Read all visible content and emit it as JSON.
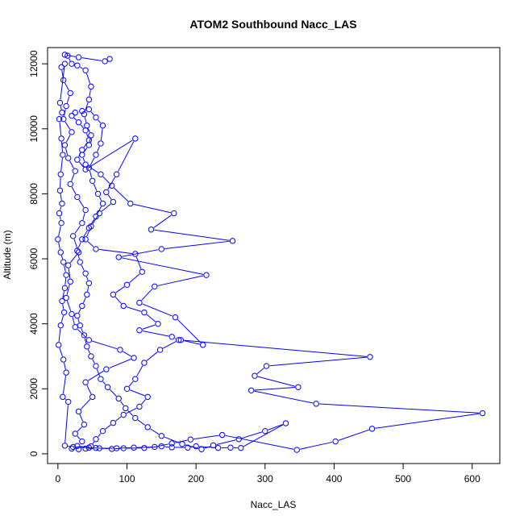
{
  "chart_data": {
    "type": "line",
    "title": "ATOM2 Southbound Nacc_LAS",
    "xlabel": "Nacc_LAS",
    "ylabel": "Altitude (m)",
    "xlim": [
      -15,
      640
    ],
    "ylim": [
      -300,
      12500
    ],
    "xticks": [
      0,
      100,
      200,
      300,
      400,
      500,
      600
    ],
    "yticks": [
      0,
      2000,
      4000,
      6000,
      8000,
      10000,
      12000
    ],
    "grid": false,
    "legend": "none",
    "marker": "open-circle",
    "color": "#0000FF",
    "series": [
      {
        "values": [
          [
            75,
            12150
          ],
          [
            68,
            12080
          ],
          [
            30,
            12200
          ],
          [
            10,
            12280
          ],
          [
            14,
            12250
          ],
          [
            20,
            12000
          ],
          [
            28,
            11950
          ],
          [
            40,
            11800
          ],
          [
            48,
            11300
          ],
          [
            45,
            10900
          ],
          [
            38,
            10450
          ],
          [
            42,
            10100
          ],
          [
            48,
            9800
          ],
          [
            45,
            9500
          ],
          [
            35,
            9200
          ],
          [
            40,
            8900
          ],
          [
            62,
            8600
          ],
          [
            78,
            8250
          ],
          [
            105,
            7700
          ],
          [
            168,
            7400
          ],
          [
            135,
            6900
          ],
          [
            253,
            6550
          ],
          [
            150,
            6300
          ],
          [
            88,
            6050
          ],
          [
            215,
            5500
          ],
          [
            140,
            5150
          ],
          [
            118,
            4650
          ],
          [
            170,
            4200
          ],
          [
            210,
            3350
          ],
          [
            178,
            3500
          ],
          [
            452,
            2980
          ],
          [
            302,
            2700
          ],
          [
            285,
            2400
          ],
          [
            348,
            2050
          ],
          [
            280,
            1950
          ],
          [
            374,
            1540
          ],
          [
            615,
            1250
          ],
          [
            455,
            770
          ],
          [
            402,
            380
          ],
          [
            346,
            120
          ],
          [
            238,
            580
          ],
          [
            192,
            440
          ],
          [
            165,
            320
          ],
          [
            140,
            210
          ],
          [
            110,
            190
          ],
          [
            85,
            170
          ],
          [
            60,
            170
          ],
          [
            45,
            190
          ],
          [
            28,
            240
          ],
          [
            35,
            380
          ],
          [
            25,
            620
          ],
          [
            38,
            900
          ],
          [
            30,
            1300
          ],
          [
            50,
            1750
          ],
          [
            40,
            2200
          ],
          [
            70,
            2600
          ],
          [
            110,
            2950
          ],
          [
            90,
            3200
          ],
          [
            45,
            3500
          ],
          [
            25,
            3900
          ],
          [
            20,
            4300
          ],
          [
            12,
            4800
          ],
          [
            18,
            5300
          ],
          [
            15,
            5800
          ],
          [
            30,
            6200
          ],
          [
            22,
            6700
          ],
          [
            35,
            7100
          ],
          [
            40,
            7500
          ],
          [
            28,
            7900
          ],
          [
            18,
            8300
          ],
          [
            25,
            8700
          ],
          [
            15,
            9100
          ],
          [
            10,
            9500
          ],
          [
            20,
            9900
          ],
          [
            8,
            10300
          ],
          [
            12,
            10700
          ],
          [
            18,
            11100
          ],
          [
            8,
            11500
          ],
          [
            5,
            11900
          ],
          [
            10,
            12000
          ],
          [
            3,
            10800
          ],
          [
            6,
            10500
          ],
          [
            2,
            10300
          ],
          [
            5,
            9700
          ],
          [
            7,
            9200
          ],
          [
            4,
            8600
          ],
          [
            3,
            8100
          ],
          [
            6,
            7700
          ],
          [
            2,
            7400
          ],
          [
            5,
            7100
          ],
          [
            0,
            6600
          ],
          [
            4,
            6200
          ],
          [
            8,
            5900
          ],
          [
            12,
            5500
          ],
          [
            10,
            5100
          ],
          [
            6,
            4700
          ],
          [
            9,
            4350
          ],
          [
            4,
            3950
          ],
          [
            1,
            3350
          ],
          [
            8,
            2900
          ],
          [
            12,
            2500
          ],
          [
            7,
            1750
          ],
          [
            15,
            1600
          ],
          [
            10,
            250
          ],
          [
            22,
            210
          ],
          [
            55,
            180
          ],
          [
            78,
            150
          ],
          [
            95,
            170
          ],
          [
            125,
            180
          ],
          [
            150,
            230
          ],
          [
            165,
            200
          ],
          [
            188,
            190
          ],
          [
            200,
            230
          ],
          [
            232,
            180
          ],
          [
            250,
            190
          ],
          [
            265,
            180
          ],
          [
            330,
            940
          ],
          [
            300,
            700
          ],
          [
            262,
            450
          ],
          [
            225,
            260
          ],
          [
            208,
            140
          ],
          [
            180,
            300
          ],
          [
            150,
            550
          ],
          [
            130,
            820
          ],
          [
            112,
            1100
          ],
          [
            98,
            1400
          ],
          [
            88,
            1700
          ],
          [
            72,
            2050
          ],
          [
            62,
            2300
          ],
          [
            55,
            2700
          ],
          [
            48,
            3000
          ],
          [
            42,
            3300
          ],
          [
            38,
            3650
          ],
          [
            32,
            3950
          ],
          [
            28,
            4250
          ],
          [
            35,
            4550
          ],
          [
            42,
            4900
          ],
          [
            45,
            5250
          ],
          [
            40,
            5550
          ],
          [
            32,
            5900
          ],
          [
            28,
            6250
          ],
          [
            35,
            6600
          ],
          [
            45,
            6950
          ],
          [
            55,
            7300
          ],
          [
            65,
            7700
          ],
          [
            58,
            8000
          ],
          [
            50,
            8400
          ],
          [
            45,
            8800
          ],
          [
            55,
            9200
          ],
          [
            62,
            9550
          ],
          [
            65,
            10100
          ],
          [
            55,
            10350
          ],
          [
            45,
            10600
          ],
          [
            35,
            10550
          ],
          [
            25,
            10500
          ],
          [
            20,
            10400
          ],
          [
            30,
            10200
          ],
          [
            40,
            9950
          ],
          [
            45,
            9650
          ],
          [
            35,
            9350
          ],
          [
            28,
            9050
          ],
          [
            40,
            8750
          ],
          [
            112,
            9700
          ],
          [
            85,
            8600
          ],
          [
            70,
            8050
          ],
          [
            80,
            7750
          ],
          [
            60,
            7400
          ],
          [
            48,
            7000
          ],
          [
            40,
            6600
          ],
          [
            55,
            6300
          ],
          [
            112,
            6150
          ],
          [
            122,
            5600
          ],
          [
            100,
            5200
          ],
          [
            80,
            4900
          ],
          [
            95,
            4550
          ],
          [
            125,
            4350
          ],
          [
            145,
            4000
          ],
          [
            118,
            3800
          ],
          [
            165,
            3600
          ],
          [
            175,
            3500
          ],
          [
            148,
            3200
          ],
          [
            125,
            2800
          ],
          [
            112,
            2300
          ],
          [
            100,
            2000
          ],
          [
            130,
            1750
          ],
          [
            118,
            1450
          ],
          [
            95,
            1200
          ],
          [
            80,
            950
          ],
          [
            65,
            700
          ],
          [
            55,
            450
          ],
          [
            48,
            230
          ],
          [
            40,
            160
          ],
          [
            30,
            140
          ],
          [
            20,
            160
          ]
        ]
      }
    ]
  }
}
